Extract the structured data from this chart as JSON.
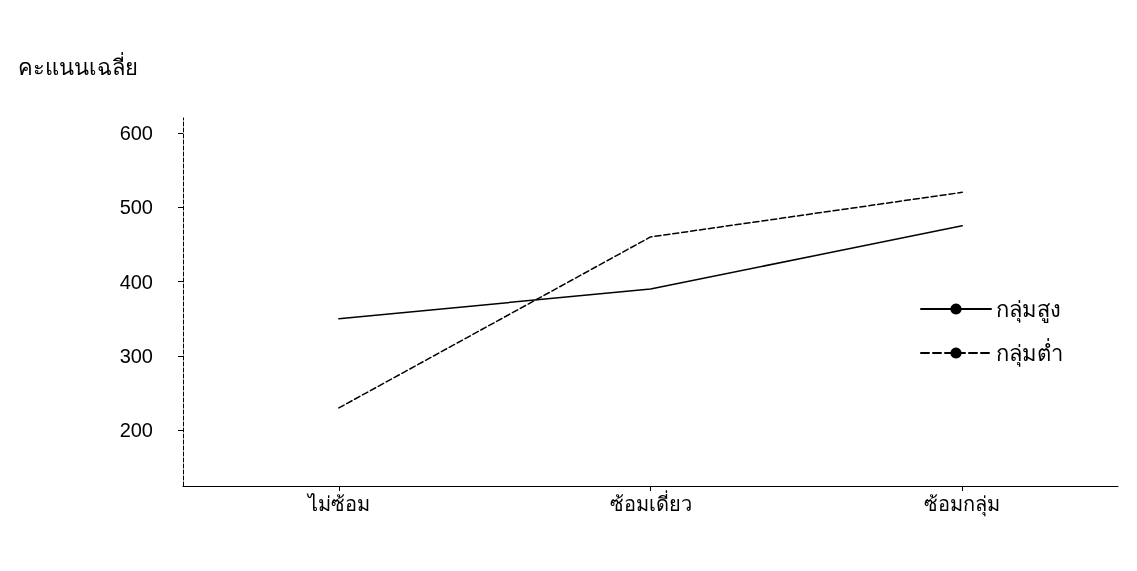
{
  "chart_data": {
    "type": "line",
    "ylabel": "คะแนนเฉลี่ย",
    "categories": [
      "ไม่ซ้อม",
      "ซ้อมเดี่ยว",
      "ซ้อมกลุ่ม"
    ],
    "series": [
      {
        "name": "กลุ่มสูง",
        "color": "#000000",
        "line_style": "solid",
        "values": [
          350,
          390,
          475
        ]
      },
      {
        "name": "กลุ่มต่ำ",
        "color": "#000000",
        "line_style": "dashed",
        "values": [
          230,
          460,
          520
        ]
      }
    ],
    "ylim": [
      125,
      620
    ],
    "yticks": [
      200,
      300,
      400,
      500,
      600
    ],
    "grid": false,
    "legend": "right",
    "marker": "none"
  }
}
